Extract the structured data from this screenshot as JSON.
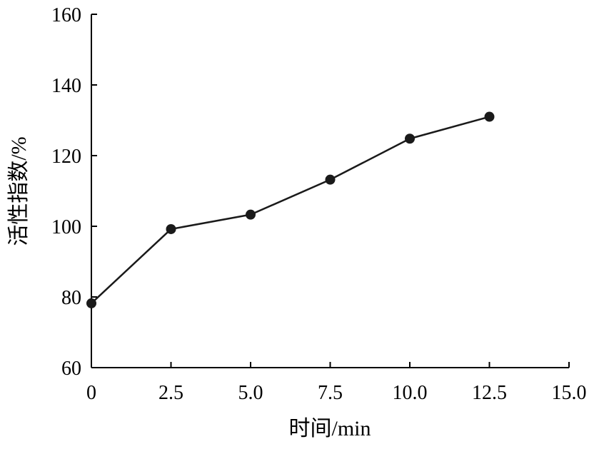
{
  "chart_data": {
    "type": "line",
    "title": "",
    "xlabel": "时间/min",
    "ylabel": "活性指数/%",
    "xlim": [
      0,
      15
    ],
    "ylim": [
      60,
      160
    ],
    "x_ticks": [
      0,
      2.5,
      5,
      7.5,
      10,
      12.5,
      15
    ],
    "x_tick_labels": [
      "0",
      "2.5",
      "5.0",
      "7.5",
      "10.0",
      "12.5",
      "15.0"
    ],
    "y_ticks": [
      60,
      80,
      100,
      120,
      140,
      160
    ],
    "y_tick_labels": [
      "60",
      "80",
      "100",
      "120",
      "140",
      "160"
    ],
    "grid": false,
    "legend": "none",
    "series": [
      {
        "x": [
          0,
          2.5,
          5,
          7.5,
          10,
          12.5
        ],
        "y": [
          78.2,
          99.2,
          103.3,
          113.2,
          124.8,
          131.0
        ],
        "color": "#1a1a1a",
        "marker": "circle"
      }
    ]
  }
}
